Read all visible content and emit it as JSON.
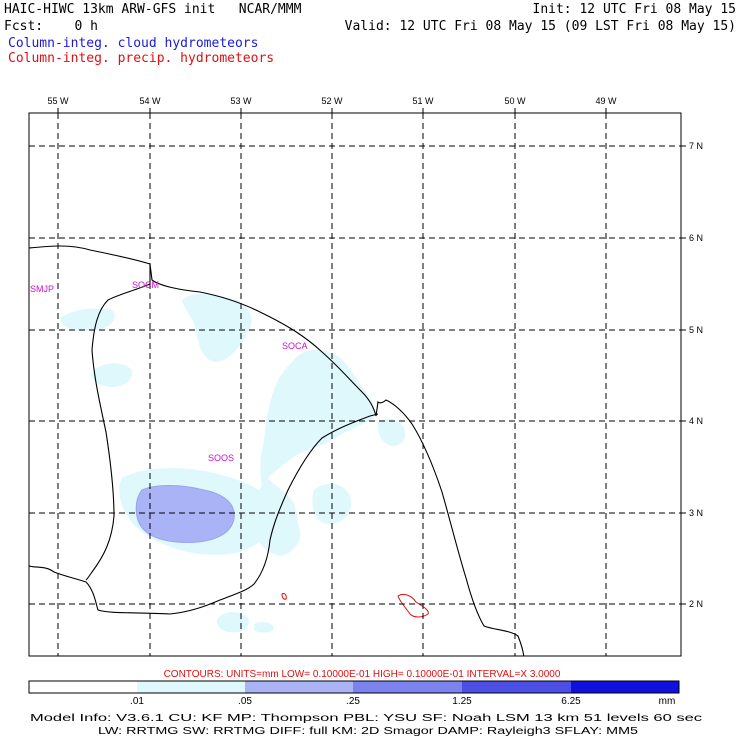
{
  "header": {
    "title": "HAIC-HIWC 13km ARW-GFS init   NCAR/MMM",
    "fcst": "Fcst:    0 h",
    "init": "Init: 12 UTC Fri 08 May 15",
    "valid": "Valid: 12 UTC Fri 08 May 15 (09 LST Fri 08 May 15)",
    "legend_cloud": "Column-integ. cloud hydrometeors",
    "legend_precip": "Column-integ. precip. hydrometeors"
  },
  "colors": {
    "cloud_label": "#1a1ad6",
    "precip_label": "#e01010",
    "station": "#d010d0",
    "shade_1": "#dff8fc",
    "shade_2": "#aab3f5",
    "shade_3": "#7c82ee",
    "shade_4": "#4c4ee6",
    "shade_5": "#1010e0"
  },
  "map": {
    "lon_labels": [
      "55 W",
      "54 W",
      "53 W",
      "52 W",
      "51 W",
      "50 W",
      "49 W"
    ],
    "lat_labels": [
      "7 N",
      "6 N",
      "5 N",
      "4 N",
      "3 N",
      "2 N"
    ],
    "stations": [
      "SMJP",
      "SOCM",
      "SOCA",
      "SOOS"
    ]
  },
  "footer": {
    "contours": "CONTOURS:  UNITS=mm  LOW= 0.10000E-01  HIGH= 0.10000E-01  INTERVAL=X  3.0000",
    "colorbar_labels": [
      ".01",
      ".05",
      ".25",
      "1.25",
      "6.25"
    ],
    "colorbar_unit": "mm",
    "model_line1": "Model Info: V3.6.1     CU: KF     MP: Thompson    PBL: YSU     SF: Noah LSM     13 km    51 levels   60 sec",
    "model_line2": "LW: RRTMG    SW: RRTMG   DIFF: full    KM: 2D Smagor DAMP: Rayleigh3  SFLAY: MM5"
  }
}
